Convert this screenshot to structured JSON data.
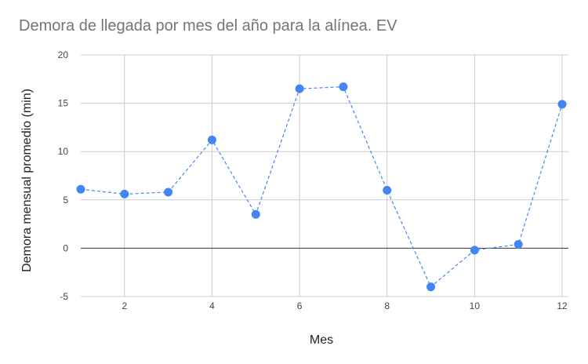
{
  "chart_data": {
    "type": "line",
    "title": "Demora de llegada por mes del año para la alínea. EV",
    "xlabel": "Mes",
    "ylabel": "Demora mensual promedio (min)",
    "xlim": [
      1,
      12
    ],
    "ylim": [
      -5,
      20
    ],
    "x_ticks": [
      2,
      4,
      6,
      8,
      10,
      12
    ],
    "y_ticks": [
      -5,
      0,
      5,
      10,
      15,
      20
    ],
    "grid": true,
    "line_style": "dashed",
    "series": [
      {
        "color": "#4285f4",
        "x": [
          1,
          2,
          3,
          4,
          5,
          6,
          7,
          8,
          9,
          10,
          11,
          12
        ],
        "y": [
          6.1,
          5.6,
          5.8,
          11.2,
          3.5,
          16.5,
          16.7,
          6.0,
          -4.0,
          -0.2,
          0.4,
          14.9
        ]
      }
    ]
  }
}
